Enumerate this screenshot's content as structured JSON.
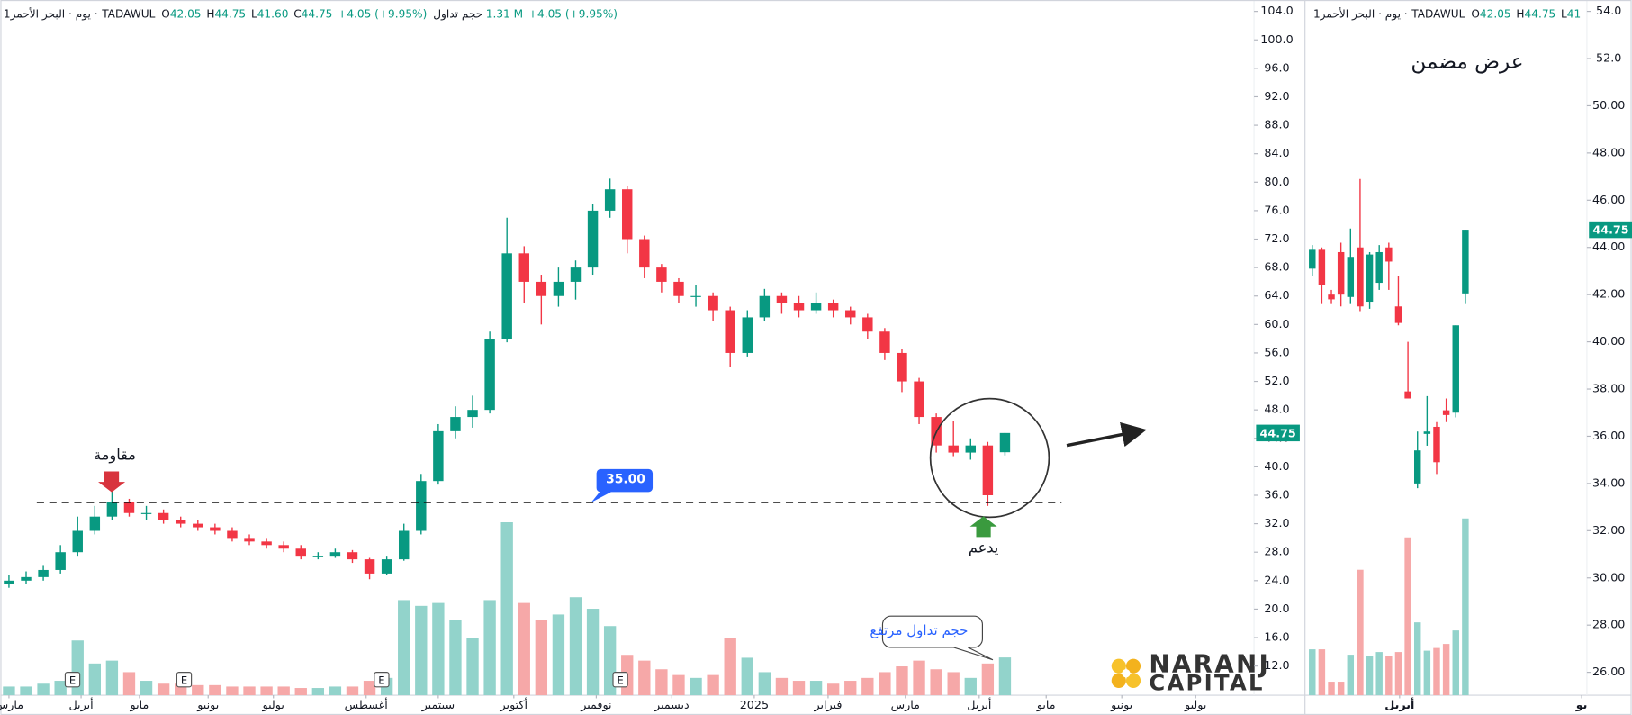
{
  "header": {
    "name": "1يوم · البحر الأحمر ·",
    "exchange": "TADAWUL",
    "ohlc": [
      {
        "label": "O",
        "value": "42.05"
      },
      {
        "label": "H",
        "value": "44.75"
      },
      {
        "label": "L",
        "value": "41.60"
      },
      {
        "label": "C",
        "value": "44.75"
      }
    ],
    "change": "+4.05 (+9.95%)",
    "volume_label": "حجم تداول",
    "volume": "1.31 M"
  },
  "logo": {
    "line1": "NARANJ",
    "line2": "CAPITAL"
  },
  "chart_data": [
    {
      "type": "candlestick",
      "up_color": "#089981",
      "down_color": "#f23645",
      "volume_up_color": "#92d3cb",
      "volume_down_color": "#f6a8a8",
      "xlim": [
        -0.5,
        72.5
      ],
      "ylim": [
        7.9,
        105.6
      ],
      "vlim": [
        0,
        6.5
      ],
      "xticks": [
        {
          "value": 0,
          "label": "مارس"
        },
        {
          "value": 4.2,
          "label": "أبريل"
        },
        {
          "value": 7.6,
          "label": "مايو"
        },
        {
          "value": 11.6,
          "label": "يونيو"
        },
        {
          "value": 15.4,
          "label": "يوليو"
        },
        {
          "value": 20.8,
          "label": "أغسطس"
        },
        {
          "value": 25,
          "label": "سبتمبر"
        },
        {
          "value": 29.4,
          "label": "أكتوبر"
        },
        {
          "value": 34.2,
          "label": "نوفمبر"
        },
        {
          "value": 38.6,
          "label": "ديسمبر"
        },
        {
          "value": 43.4,
          "label": "2025"
        },
        {
          "value": 47.7,
          "label": "فبراير"
        },
        {
          "value": 52.2,
          "label": "مارس"
        },
        {
          "value": 56.5,
          "label": "أبريل"
        },
        {
          "value": 60.4,
          "label": "مايو"
        },
        {
          "value": 64.8,
          "label": "يونيو"
        },
        {
          "value": 69.1,
          "label": "يوليو"
        }
      ],
      "yticks": [
        {
          "value": 104,
          "label": "104.0"
        },
        {
          "value": 100,
          "label": "100.0"
        },
        {
          "value": 96,
          "label": "96.0"
        },
        {
          "value": 92,
          "label": "92.0"
        },
        {
          "value": 88,
          "label": "88.0"
        },
        {
          "value": 84,
          "label": "84.0"
        },
        {
          "value": 80,
          "label": "80.0"
        },
        {
          "value": 76,
          "label": "76.0"
        },
        {
          "value": 72,
          "label": "72.0"
        },
        {
          "value": 68,
          "label": "68.0"
        },
        {
          "value": 64,
          "label": "64.0"
        },
        {
          "value": 60,
          "label": "60.0"
        },
        {
          "value": 56,
          "label": "56.0"
        },
        {
          "value": 52,
          "label": "52.0"
        },
        {
          "value": 48,
          "label": "48.0"
        },
        {
          "value": 44,
          "label": "44.0"
        },
        {
          "value": 40,
          "label": "40.0"
        },
        {
          "value": 36,
          "label": "36.0"
        },
        {
          "value": 32,
          "label": "32.0"
        },
        {
          "value": 28,
          "label": "28.0"
        },
        {
          "value": 24,
          "label": "24.0"
        },
        {
          "value": 20,
          "label": "20.0"
        },
        {
          "value": 16,
          "label": "16.0"
        },
        {
          "value": 12,
          "label": "12.0"
        }
      ],
      "open": [
        23.5,
        24.0,
        24.5,
        25.5,
        28.0,
        31.0,
        33.0,
        35.0,
        33.5,
        33.5,
        32.5,
        32.0,
        31.5,
        31.0,
        30.0,
        29.5,
        29.0,
        28.5,
        27.5,
        27.5,
        28.0,
        27.0,
        25.0,
        27.0,
        31.0,
        38.0,
        45.0,
        47.0,
        48.0,
        58.0,
        70.0,
        66.0,
        64.0,
        66.0,
        68.0,
        76.0,
        79.0,
        72.0,
        68.0,
        66.0,
        64.0,
        64.0,
        62.0,
        56.0,
        61.0,
        64.0,
        63.0,
        62.0,
        63.0,
        62.0,
        61.0,
        59.0,
        56.0,
        52.0,
        47.0,
        43.0,
        42.0,
        43.0,
        42.05
      ],
      "high": [
        24.8,
        25.3,
        26.2,
        29.0,
        33.0,
        34.5,
        36.5,
        35.5,
        34.5,
        34.0,
        33.0,
        32.5,
        32.0,
        31.5,
        30.5,
        30.0,
        29.5,
        29.0,
        28.0,
        28.5,
        28.3,
        27.2,
        27.5,
        32.0,
        39.0,
        46.0,
        48.5,
        50.0,
        59.0,
        75.0,
        71.0,
        67.0,
        68.0,
        69.0,
        77.0,
        80.5,
        79.5,
        72.5,
        68.5,
        66.5,
        65.5,
        64.5,
        62.5,
        62.0,
        65.0,
        64.5,
        64.0,
        64.5,
        63.5,
        62.5,
        61.5,
        59.5,
        56.5,
        52.5,
        47.5,
        46.5,
        44.0,
        43.5,
        44.75
      ],
      "low": [
        23.0,
        23.6,
        24.0,
        25.0,
        27.5,
        30.5,
        32.5,
        33.0,
        32.5,
        32.0,
        31.5,
        31.0,
        30.5,
        29.5,
        29.0,
        28.5,
        28.0,
        27.0,
        27.0,
        27.2,
        26.5,
        24.2,
        24.8,
        26.8,
        30.5,
        37.5,
        44.0,
        45.5,
        47.5,
        57.5,
        63.0,
        60.0,
        62.5,
        63.5,
        67.0,
        75.0,
        70.0,
        66.5,
        64.5,
        63.0,
        62.5,
        60.5,
        54.0,
        55.5,
        60.5,
        61.5,
        61.0,
        61.5,
        61.0,
        60.0,
        58.0,
        55.0,
        50.5,
        46.0,
        42.0,
        41.5,
        41.0,
        34.5,
        41.6
      ],
      "close": [
        24.0,
        24.5,
        25.5,
        28.0,
        31.0,
        33.0,
        35.0,
        33.5,
        33.5,
        32.5,
        32.0,
        31.5,
        31.0,
        30.0,
        29.5,
        29.0,
        28.5,
        27.5,
        27.5,
        28.0,
        27.0,
        25.0,
        27.0,
        31.0,
        38.0,
        45.0,
        47.0,
        48.0,
        58.0,
        70.0,
        66.0,
        64.0,
        66.0,
        68.0,
        76.0,
        79.0,
        72.0,
        68.0,
        66.0,
        64.0,
        64.0,
        62.0,
        56.0,
        61.0,
        64.0,
        63.0,
        62.0,
        63.0,
        62.0,
        61.0,
        59.0,
        56.0,
        52.0,
        47.0,
        43.0,
        42.0,
        43.0,
        36.0,
        44.75
      ],
      "volume": [
        0.3,
        0.3,
        0.4,
        0.5,
        1.9,
        1.1,
        1.2,
        0.8,
        0.5,
        0.4,
        0.4,
        0.35,
        0.35,
        0.3,
        0.3,
        0.3,
        0.3,
        0.25,
        0.25,
        0.3,
        0.3,
        0.5,
        0.6,
        3.3,
        3.1,
        3.2,
        2.6,
        2.0,
        3.3,
        6.0,
        3.2,
        2.6,
        2.8,
        3.4,
        3.0,
        2.4,
        1.4,
        1.2,
        0.9,
        0.7,
        0.6,
        0.7,
        2.0,
        1.3,
        0.8,
        0.6,
        0.5,
        0.5,
        0.4,
        0.5,
        0.6,
        0.8,
        1.0,
        1.2,
        0.9,
        0.8,
        0.6,
        1.1,
        1.31
      ],
      "last_price": {
        "value": 44.75,
        "label": "44.75"
      },
      "level": {
        "value": 35,
        "label": "35.00"
      },
      "earnings": {
        "label": "E",
        "x": [
          3.7,
          10.2,
          21.7,
          35.6
        ]
      },
      "annotations": {
        "resistance": "مقاومة",
        "support": "يدعم",
        "volume_note": "حجم تداول مرتفع"
      }
    },
    {
      "type": "candlestick",
      "title": "عرض مضمن",
      "up_color": "#089981",
      "down_color": "#f23645",
      "volume_up_color": "#92d3cb",
      "volume_down_color": "#f6a8a8",
      "xlim": [
        -0.65,
        28.7
      ],
      "ylim": [
        25.03,
        54.48
      ],
      "vlim": [
        0,
        1.35
      ],
      "xticks": [
        {
          "value": 9.13,
          "label": "أبريل"
        },
        {
          "value": 28.15,
          "label": "يو"
        }
      ],
      "yticks": [
        {
          "value": 54,
          "label": "54.0"
        },
        {
          "value": 52,
          "label": "52.0"
        },
        {
          "value": 50,
          "label": "50.00"
        },
        {
          "value": 48,
          "label": "48.00"
        },
        {
          "value": 46,
          "label": "46.00"
        },
        {
          "value": 44,
          "label": "44.00"
        },
        {
          "value": 42,
          "label": "42.00"
        },
        {
          "value": 40,
          "label": "40.00"
        },
        {
          "value": 38,
          "label": "38.00"
        },
        {
          "value": 36,
          "label": "36.00"
        },
        {
          "value": 34,
          "label": "34.00"
        },
        {
          "value": 32,
          "label": "32.00"
        },
        {
          "value": 30,
          "label": "30.00"
        },
        {
          "value": 28,
          "label": "28.00"
        },
        {
          "value": 26,
          "label": "26.00"
        }
      ],
      "open": [
        43.1,
        43.9,
        42.0,
        43.8,
        41.9,
        44.0,
        41.7,
        42.5,
        44.0,
        41.5,
        37.9,
        34.0,
        36.1,
        36.4,
        37.1,
        37.0,
        42.05
      ],
      "high": [
        44.1,
        44.0,
        42.2,
        44.2,
        44.8,
        46.9,
        43.8,
        44.1,
        44.2,
        42.8,
        40.0,
        36.2,
        37.7,
        36.6,
        37.6,
        40.7,
        44.75
      ],
      "low": [
        42.8,
        41.6,
        41.6,
        41.5,
        41.6,
        41.3,
        41.4,
        42.2,
        42.2,
        40.7,
        37.6,
        33.8,
        35.6,
        34.4,
        36.6,
        36.8,
        41.6
      ],
      "close": [
        43.9,
        42.4,
        41.8,
        42.0,
        43.6,
        41.5,
        43.7,
        43.8,
        43.4,
        40.8,
        37.6,
        35.4,
        36.2,
        34.9,
        36.9,
        40.7,
        44.75
      ],
      "volume": [
        0.34,
        0.34,
        0.1,
        0.1,
        0.3,
        0.93,
        0.29,
        0.32,
        0.29,
        0.32,
        1.17,
        0.54,
        0.33,
        0.35,
        0.38,
        0.48,
        1.31
      ],
      "last_price": {
        "value": 44.75,
        "label": "44.75"
      }
    }
  ]
}
